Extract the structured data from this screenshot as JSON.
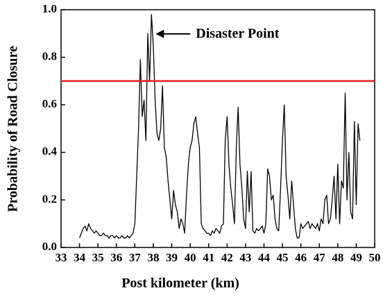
{
  "chart_data": {
    "type": "line",
    "xlabel": "Post kilometer (km)",
    "ylabel": "Probability of Road Closure",
    "x": [
      34.0,
      34.1,
      34.2,
      34.3,
      34.4,
      34.5,
      34.6,
      34.7,
      34.8,
      34.9,
      35.0,
      35.1,
      35.2,
      35.3,
      35.4,
      35.5,
      35.6,
      35.7,
      35.8,
      35.9,
      36.0,
      36.1,
      36.2,
      36.3,
      36.4,
      36.5,
      36.6,
      36.7,
      36.8,
      36.9,
      37.0,
      37.1,
      37.2,
      37.3,
      37.4,
      37.5,
      37.6,
      37.7,
      37.8,
      37.9,
      38.0,
      38.1,
      38.2,
      38.3,
      38.4,
      38.5,
      38.6,
      38.7,
      38.8,
      38.9,
      39.0,
      39.1,
      39.2,
      39.3,
      39.4,
      39.5,
      39.6,
      39.7,
      39.8,
      39.9,
      40.0,
      40.1,
      40.2,
      40.3,
      40.4,
      40.5,
      40.6,
      40.7,
      40.8,
      40.9,
      41.0,
      41.1,
      41.2,
      41.3,
      41.4,
      41.5,
      41.6,
      41.7,
      41.8,
      41.9,
      42.0,
      42.1,
      42.2,
      42.3,
      42.4,
      42.5,
      42.6,
      42.7,
      42.8,
      42.9,
      43.0,
      43.1,
      43.2,
      43.3,
      43.4,
      43.5,
      43.6,
      43.7,
      43.8,
      43.9,
      44.0,
      44.1,
      44.2,
      44.3,
      44.4,
      44.5,
      44.6,
      44.7,
      44.8,
      44.9,
      45.0,
      45.1,
      45.2,
      45.3,
      45.4,
      45.5,
      45.6,
      45.7,
      45.8,
      45.9,
      46.0,
      46.1,
      46.2,
      46.3,
      46.4,
      46.5,
      46.6,
      46.7,
      46.8,
      46.9,
      47.0,
      47.1,
      47.2,
      47.3,
      47.4,
      47.5,
      47.6,
      47.7,
      47.8,
      47.9,
      48.0,
      48.1,
      48.2,
      48.3,
      48.4,
      48.5,
      48.6,
      48.7,
      48.8,
      48.9,
      49.0,
      49.1,
      49.2
    ],
    "series": [
      {
        "color": "#000000",
        "values": [
          0.04,
          0.06,
          0.08,
          0.09,
          0.07,
          0.1,
          0.08,
          0.07,
          0.06,
          0.07,
          0.06,
          0.05,
          0.05,
          0.06,
          0.05,
          0.05,
          0.04,
          0.05,
          0.05,
          0.04,
          0.05,
          0.04,
          0.04,
          0.05,
          0.04,
          0.04,
          0.05,
          0.04,
          0.05,
          0.06,
          0.1,
          0.3,
          0.5,
          0.79,
          0.55,
          0.62,
          0.45,
          0.9,
          0.7,
          0.98,
          0.85,
          0.62,
          0.48,
          0.45,
          0.5,
          0.68,
          0.42,
          0.38,
          0.28,
          0.2,
          0.12,
          0.24,
          0.18,
          0.15,
          0.08,
          0.12,
          0.1,
          0.06,
          0.22,
          0.35,
          0.42,
          0.45,
          0.52,
          0.55,
          0.48,
          0.42,
          0.1,
          0.08,
          0.07,
          0.06,
          0.06,
          0.05,
          0.07,
          0.06,
          0.08,
          0.07,
          0.06,
          0.09,
          0.1,
          0.45,
          0.55,
          0.35,
          0.25,
          0.18,
          0.1,
          0.42,
          0.59,
          0.35,
          0.25,
          0.12,
          0.08,
          0.32,
          0.15,
          0.32,
          0.07,
          0.06,
          0.08,
          0.07,
          0.08,
          0.09,
          0.06,
          0.1,
          0.33,
          0.3,
          0.2,
          0.22,
          0.12,
          0.08,
          0.07,
          0.25,
          0.45,
          0.6,
          0.3,
          0.22,
          0.12,
          0.28,
          0.18,
          0.08,
          0.04,
          0.04,
          0.1,
          0.08,
          0.09,
          0.1,
          0.11,
          0.08,
          0.1,
          0.09,
          0.08,
          0.1,
          0.07,
          0.12,
          0.1,
          0.2,
          0.22,
          0.1,
          0.12,
          0.2,
          0.3,
          0.12,
          0.35,
          0.1,
          0.28,
          0.25,
          0.65,
          0.2,
          0.4,
          0.15,
          0.12,
          0.53,
          0.18,
          0.52,
          0.45
        ]
      }
    ],
    "threshold": {
      "value": 0.7,
      "color": "#e41a1c"
    },
    "annotation": {
      "text": "Disaster Point",
      "x": 37.9,
      "y": 0.98
    },
    "xlim": [
      33,
      50
    ],
    "ylim": [
      0,
      1
    ],
    "xticks": [
      33,
      34,
      35,
      36,
      37,
      38,
      39,
      40,
      41,
      42,
      43,
      44,
      45,
      46,
      47,
      48,
      49,
      50
    ],
    "yticks": [
      {
        "value": 0,
        "label": "0.0"
      },
      0.2,
      0.4,
      0.6,
      0.8,
      {
        "value": 1,
        "label": "1.0"
      }
    ]
  }
}
